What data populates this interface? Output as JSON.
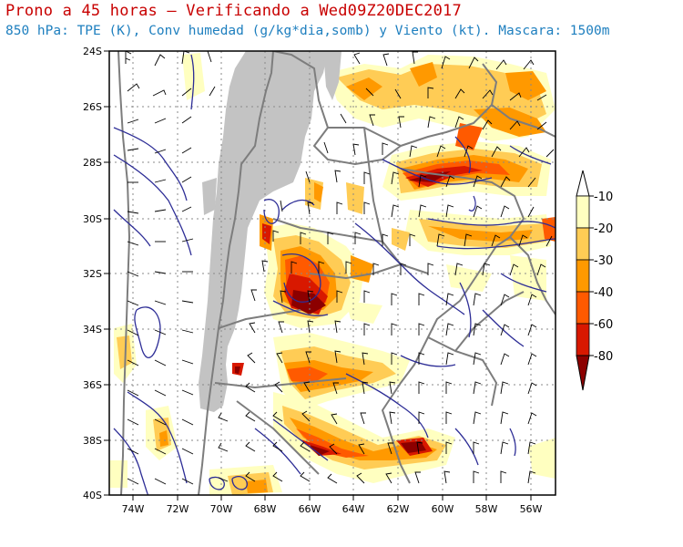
{
  "title": "Prono a 45 horas — Verificando a Wed09Z20DEC2017",
  "subtitle": "850 hPa: TPE (K), Conv humedad (g/kg*dia,somb) y Viento (kt). Mascara: 1500m",
  "lat_labels": [
    "24S",
    "26S",
    "28S",
    "30S",
    "32S",
    "34S",
    "36S",
    "38S",
    "40S"
  ],
  "lon_labels": [
    "74W",
    "72W",
    "70W",
    "68W",
    "66W",
    "64W",
    "62W",
    "60W",
    "58W",
    "56W"
  ],
  "extent": {
    "lon_min": -75,
    "lon_max": -55,
    "lat_min": -40,
    "lat_max": -24
  },
  "colorbar": {
    "labels": [
      "-10",
      "-20",
      "-30",
      "-40",
      "-60",
      "-80"
    ],
    "colors": [
      "#ffffc0",
      "#ffcc55",
      "#ff9900",
      "#ff5a00",
      "#d81800",
      "#8c0000"
    ]
  },
  "colors": {
    "mask": "#c3c3c3",
    "borders": "#7d7d7d",
    "tpe_contours": "#2d2d96",
    "title": "#c80000",
    "subtitle": "#1e7fbf"
  }
}
